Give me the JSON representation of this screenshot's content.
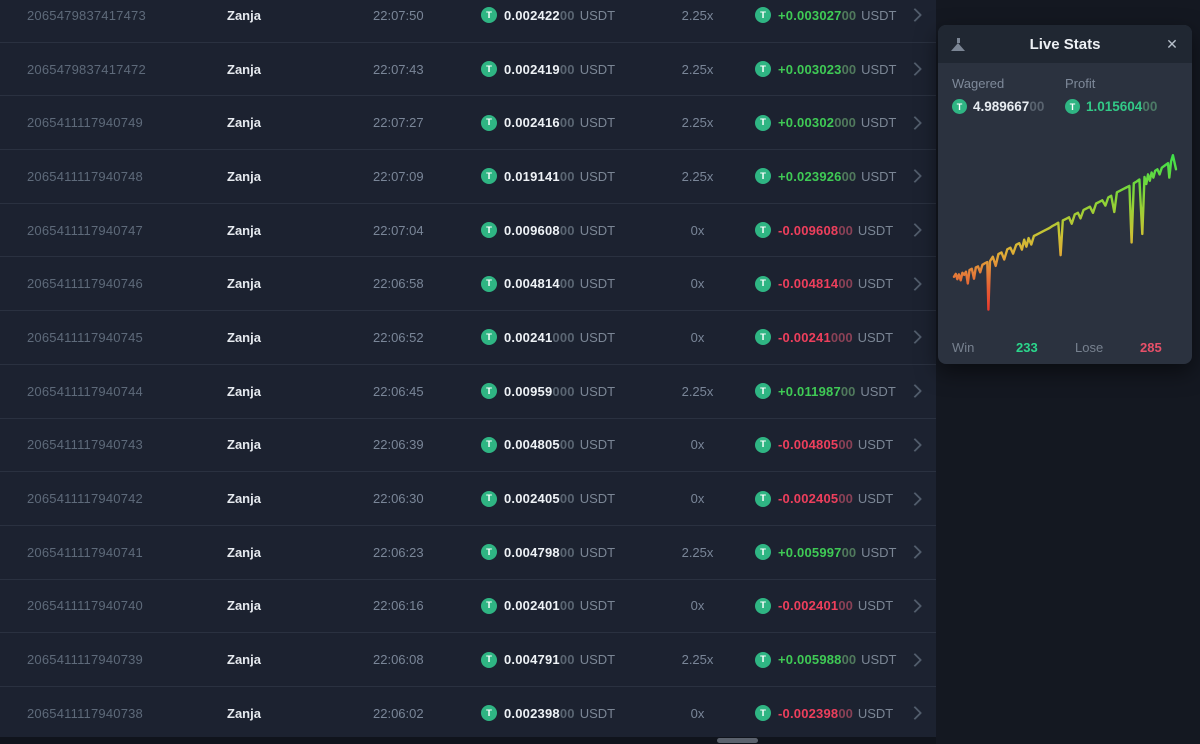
{
  "table": {
    "currency": "USDT",
    "rows": [
      {
        "id": "2065479837417473",
        "player": "Zanja",
        "time": "22:07:50",
        "bet_main": "0.002422",
        "bet_dim": "00",
        "multiplier": "2.25x",
        "profit_main": "+0.003027",
        "profit_dim": "00",
        "win": true
      },
      {
        "id": "2065479837417472",
        "player": "Zanja",
        "time": "22:07:43",
        "bet_main": "0.002419",
        "bet_dim": "00",
        "multiplier": "2.25x",
        "profit_main": "+0.003023",
        "profit_dim": "00",
        "win": true
      },
      {
        "id": "2065411117940749",
        "player": "Zanja",
        "time": "22:07:27",
        "bet_main": "0.002416",
        "bet_dim": "00",
        "multiplier": "2.25x",
        "profit_main": "+0.00302",
        "profit_dim": "000",
        "win": true
      },
      {
        "id": "2065411117940748",
        "player": "Zanja",
        "time": "22:07:09",
        "bet_main": "0.019141",
        "bet_dim": "00",
        "multiplier": "2.25x",
        "profit_main": "+0.023926",
        "profit_dim": "00",
        "win": true
      },
      {
        "id": "2065411117940747",
        "player": "Zanja",
        "time": "22:07:04",
        "bet_main": "0.009608",
        "bet_dim": "00",
        "multiplier": "0x",
        "profit_main": "-0.009608",
        "profit_dim": "00",
        "win": false
      },
      {
        "id": "2065411117940746",
        "player": "Zanja",
        "time": "22:06:58",
        "bet_main": "0.004814",
        "bet_dim": "00",
        "multiplier": "0x",
        "profit_main": "-0.004814",
        "profit_dim": "00",
        "win": false
      },
      {
        "id": "2065411117940745",
        "player": "Zanja",
        "time": "22:06:52",
        "bet_main": "0.00241",
        "bet_dim": "000",
        "multiplier": "0x",
        "profit_main": "-0.00241",
        "profit_dim": "000",
        "win": false
      },
      {
        "id": "2065411117940744",
        "player": "Zanja",
        "time": "22:06:45",
        "bet_main": "0.00959",
        "bet_dim": "000",
        "multiplier": "2.25x",
        "profit_main": "+0.011987",
        "profit_dim": "00",
        "win": true
      },
      {
        "id": "2065411117940743",
        "player": "Zanja",
        "time": "22:06:39",
        "bet_main": "0.004805",
        "bet_dim": "00",
        "multiplier": "0x",
        "profit_main": "-0.004805",
        "profit_dim": "00",
        "win": false
      },
      {
        "id": "2065411117940742",
        "player": "Zanja",
        "time": "22:06:30",
        "bet_main": "0.002405",
        "bet_dim": "00",
        "multiplier": "0x",
        "profit_main": "-0.002405",
        "profit_dim": "00",
        "win": false
      },
      {
        "id": "2065411117940741",
        "player": "Zanja",
        "time": "22:06:23",
        "bet_main": "0.004798",
        "bet_dim": "00",
        "multiplier": "2.25x",
        "profit_main": "+0.005997",
        "profit_dim": "00",
        "win": true
      },
      {
        "id": "2065411117940740",
        "player": "Zanja",
        "time": "22:06:16",
        "bet_main": "0.002401",
        "bet_dim": "00",
        "multiplier": "0x",
        "profit_main": "-0.002401",
        "profit_dim": "00",
        "win": false
      },
      {
        "id": "2065411117940739",
        "player": "Zanja",
        "time": "22:06:08",
        "bet_main": "0.004791",
        "bet_dim": "00",
        "multiplier": "2.25x",
        "profit_main": "+0.005988",
        "profit_dim": "00",
        "win": true
      },
      {
        "id": "2065411117940738",
        "player": "Zanja",
        "time": "22:06:02",
        "bet_main": "0.002398",
        "bet_dim": "00",
        "multiplier": "0x",
        "profit_main": "-0.002398",
        "profit_dim": "00",
        "win": false
      }
    ]
  },
  "live_stats": {
    "title": "Live Stats",
    "wagered_label": "Wagered",
    "wagered_main": "4.989667",
    "wagered_dim": "00",
    "profit_label": "Profit",
    "profit_main": "1.015604",
    "profit_dim": "00",
    "win_label": "Win",
    "win_count": "233",
    "lose_label": "Lose",
    "lose_count": "285"
  },
  "icons": {
    "tether": "T",
    "close": "✕"
  },
  "colors": {
    "win_green": "#3fca55",
    "lose_red": "#ee3f5c",
    "stats_profit_green": "#32c987",
    "win_count_green": "#2bd78c",
    "lose_count_red": "#e85069",
    "tether_green": "#2fb583",
    "table_bg": "#1c2230",
    "panel_bg": "#2b323f",
    "panel_header_bg": "#202732",
    "page_bg": "#141821",
    "row_separator": "#2a3140"
  },
  "chart_data": {
    "type": "line",
    "title": "Live Stats cumulative profit sparkline",
    "x_desc": "bet sequence, normalized 0-1 (oldest left, newest right)",
    "y_desc": "cumulative profit, normalized (0 = chart top / max profit, 1 = bottom / min)",
    "wagered_total": 4.989667,
    "profit_total": 1.015604,
    "win": 233,
    "lose": 285,
    "grid": false,
    "legend": "none",
    "gradient": [
      {
        "offset": 0,
        "color": "#3ee04a"
      },
      {
        "offset": 0.3,
        "color": "#8ed336"
      },
      {
        "offset": 0.5,
        "color": "#c6c334"
      },
      {
        "offset": 0.63,
        "color": "#dfaf36"
      },
      {
        "offset": 0.75,
        "color": "#e4833a"
      },
      {
        "offset": 0.87,
        "color": "#e55c33"
      },
      {
        "offset": 1,
        "color": "#e93a2e"
      }
    ],
    "points": [
      [
        0.0,
        0.78
      ],
      [
        0.008,
        0.762
      ],
      [
        0.015,
        0.795
      ],
      [
        0.022,
        0.765
      ],
      [
        0.03,
        0.802
      ],
      [
        0.038,
        0.755
      ],
      [
        0.046,
        0.768
      ],
      [
        0.054,
        0.748
      ],
      [
        0.062,
        0.822
      ],
      [
        0.07,
        0.738
      ],
      [
        0.08,
        0.73
      ],
      [
        0.09,
        0.792
      ],
      [
        0.098,
        0.722
      ],
      [
        0.108,
        0.715
      ],
      [
        0.118,
        0.752
      ],
      [
        0.128,
        0.705
      ],
      [
        0.14,
        0.695
      ],
      [
        0.15,
        0.688
      ],
      [
        0.155,
        0.985
      ],
      [
        0.162,
        0.682
      ],
      [
        0.175,
        0.655
      ],
      [
        0.188,
        0.712
      ],
      [
        0.2,
        0.638
      ],
      [
        0.214,
        0.628
      ],
      [
        0.226,
        0.672
      ],
      [
        0.24,
        0.608
      ],
      [
        0.254,
        0.598
      ],
      [
        0.266,
        0.635
      ],
      [
        0.28,
        0.58
      ],
      [
        0.294,
        0.57
      ],
      [
        0.306,
        0.61
      ],
      [
        0.316,
        0.548
      ],
      [
        0.326,
        0.592
      ],
      [
        0.336,
        0.538
      ],
      [
        0.348,
        0.578
      ],
      [
        0.36,
        0.525
      ],
      [
        0.374,
        0.515
      ],
      [
        0.388,
        0.505
      ],
      [
        0.402,
        0.495
      ],
      [
        0.416,
        0.485
      ],
      [
        0.43,
        0.475
      ],
      [
        0.444,
        0.462
      ],
      [
        0.458,
        0.452
      ],
      [
        0.47,
        0.442
      ],
      [
        0.48,
        0.645
      ],
      [
        0.49,
        0.428
      ],
      [
        0.504,
        0.418
      ],
      [
        0.518,
        0.408
      ],
      [
        0.53,
        0.448
      ],
      [
        0.544,
        0.39
      ],
      [
        0.558,
        0.38
      ],
      [
        0.57,
        0.415
      ],
      [
        0.584,
        0.362
      ],
      [
        0.598,
        0.352
      ],
      [
        0.612,
        0.342
      ],
      [
        0.626,
        0.38
      ],
      [
        0.64,
        0.322
      ],
      [
        0.654,
        0.312
      ],
      [
        0.668,
        0.302
      ],
      [
        0.682,
        0.335
      ],
      [
        0.695,
        0.284
      ],
      [
        0.708,
        0.274
      ],
      [
        0.722,
        0.375
      ],
      [
        0.734,
        0.252
      ],
      [
        0.748,
        0.242
      ],
      [
        0.762,
        0.232
      ],
      [
        0.776,
        0.222
      ],
      [
        0.79,
        0.212
      ],
      [
        0.8,
        0.565
      ],
      [
        0.81,
        0.195
      ],
      [
        0.822,
        0.185
      ],
      [
        0.835,
        0.172
      ],
      [
        0.848,
        0.512
      ],
      [
        0.858,
        0.156
      ],
      [
        0.866,
        0.2
      ],
      [
        0.874,
        0.14
      ],
      [
        0.882,
        0.18
      ],
      [
        0.89,
        0.128
      ],
      [
        0.898,
        0.16
      ],
      [
        0.906,
        0.118
      ],
      [
        0.916,
        0.108
      ],
      [
        0.926,
        0.14
      ],
      [
        0.936,
        0.098
      ],
      [
        0.946,
        0.088
      ],
      [
        0.956,
        0.078
      ],
      [
        0.964,
        0.07
      ],
      [
        0.97,
        0.16
      ],
      [
        0.978,
        0.058
      ],
      [
        0.986,
        0.02
      ],
      [
        1.0,
        0.108
      ]
    ]
  }
}
